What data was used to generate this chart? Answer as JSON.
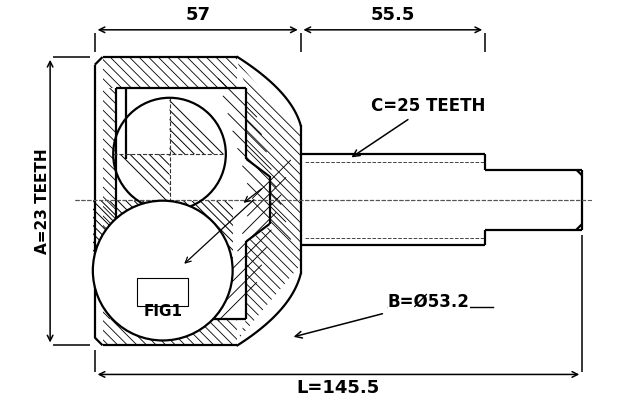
{
  "bg_color": "#ffffff",
  "line_color": "#000000",
  "figsize": [
    6.4,
    4.0
  ],
  "dpi": 100,
  "label_57": "57",
  "label_55": "55.5",
  "label_L": "L=145.5",
  "label_A": "A=23 TEETH",
  "label_B": "B=Ø53.2",
  "label_C": "C=25 TEETH",
  "label_fig1": "FIG1"
}
